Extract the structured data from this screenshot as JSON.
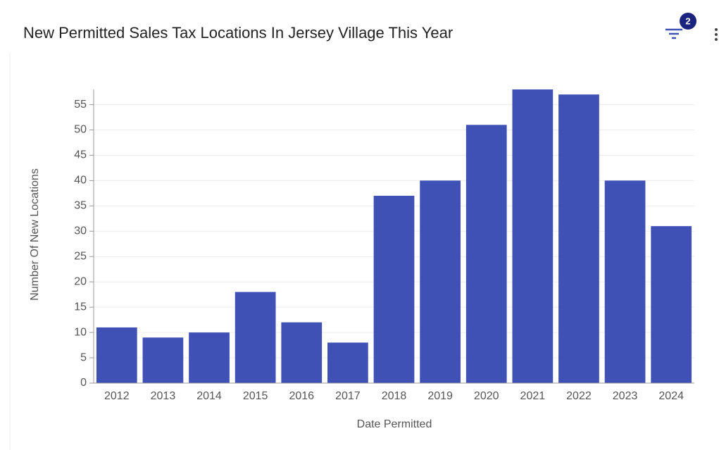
{
  "toolbar": {
    "filter_count": "2"
  },
  "chart_data": {
    "type": "bar",
    "title": "New Permitted Sales Tax Locations In Jersey Village This Year",
    "x_label": "Date Permitted",
    "y_label": "Number Of New Locations",
    "categories": [
      "2012",
      "2013",
      "2014",
      "2015",
      "2016",
      "2017",
      "2018",
      "2019",
      "2020",
      "2021",
      "2022",
      "2023",
      "2024"
    ],
    "values": [
      11,
      9,
      10,
      18,
      12,
      8,
      37,
      40,
      51,
      58,
      57,
      40,
      31
    ],
    "color": "#3f51b5",
    "ylim": [
      0,
      58
    ],
    "yticks": [
      0,
      5,
      10,
      15,
      20,
      25,
      30,
      35,
      40,
      45,
      50,
      55
    ],
    "grid": true
  }
}
